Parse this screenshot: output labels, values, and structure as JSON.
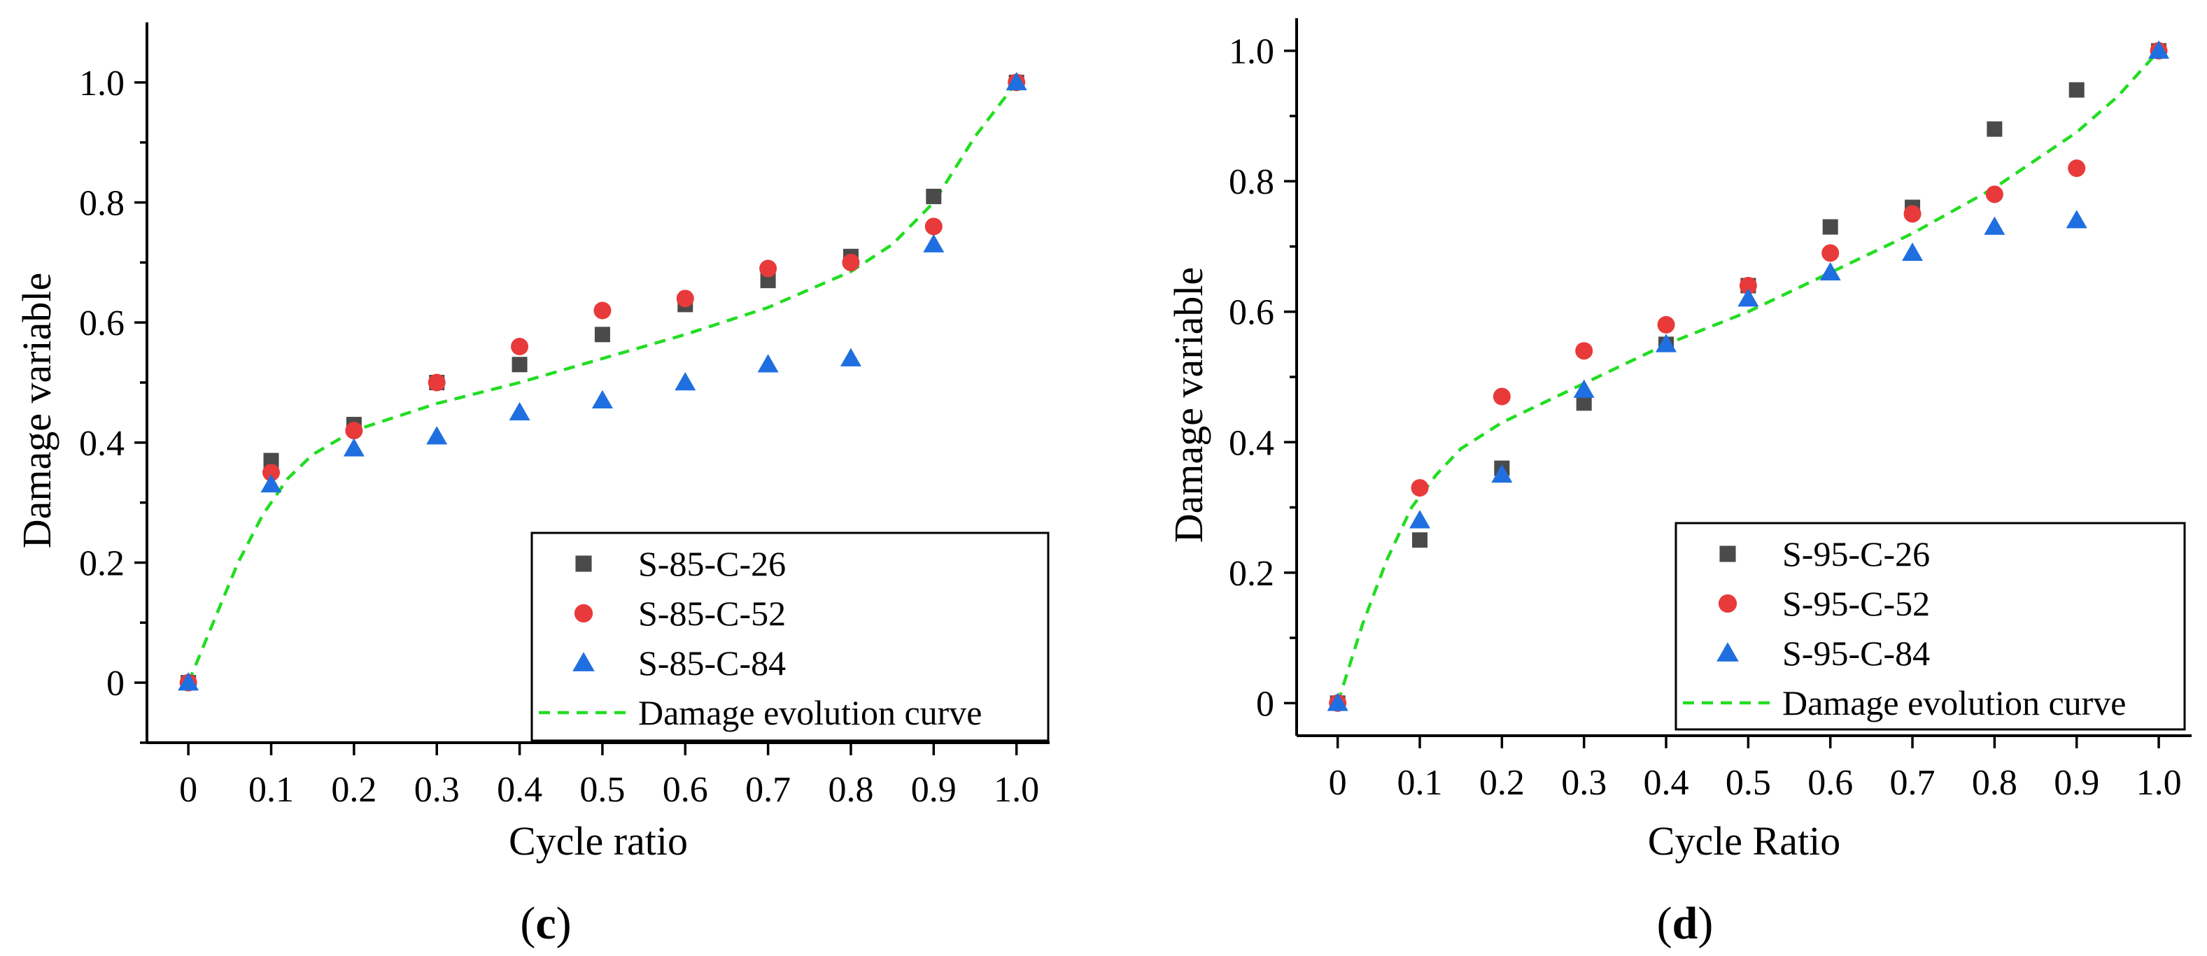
{
  "colors": {
    "s26": "#4a4a4a",
    "s52": "#e83a3a",
    "s84": "#1f6fe0",
    "curve": "#22dd22"
  },
  "chart_data": [
    {
      "type": "scatter",
      "panel_label": "c",
      "xlabel": "Cycle ratio",
      "ylabel": "Damage variable",
      "xlim": [
        -0.05,
        1.04
      ],
      "ylim": [
        -0.1,
        1.1
      ],
      "x_ticks": [
        "0",
        "0.1",
        "0.2",
        "0.3",
        "0.4",
        "0.5",
        "0.6",
        "0.7",
        "0.8",
        "0.9",
        "1.0"
      ],
      "y_ticks": [
        "0",
        "0.2",
        "0.4",
        "0.6",
        "0.8",
        "1.0"
      ],
      "legend_position": "bottom-right",
      "x": [
        0,
        0.1,
        0.2,
        0.3,
        0.4,
        0.5,
        0.6,
        0.7,
        0.8,
        0.9,
        1.0
      ],
      "series": [
        {
          "name": "S-85-C-26",
          "marker": "square",
          "color_key": "s26",
          "values": [
            0,
            0.37,
            0.43,
            0.5,
            0.53,
            0.58,
            0.63,
            0.67,
            0.71,
            0.81,
            1.0
          ]
        },
        {
          "name": "S-85-C-52",
          "marker": "circle",
          "color_key": "s52",
          "values": [
            0,
            0.35,
            0.42,
            0.5,
            0.56,
            0.62,
            0.64,
            0.69,
            0.7,
            0.76,
            1.0
          ]
        },
        {
          "name": "S-85-C-84",
          "marker": "triangle",
          "color_key": "s84",
          "values": [
            0,
            0.33,
            0.39,
            0.41,
            0.45,
            0.47,
            0.5,
            0.53,
            0.54,
            0.73,
            1.0
          ]
        }
      ],
      "curve": {
        "name": "Damage evolution curve",
        "x": [
          0,
          0.03,
          0.06,
          0.09,
          0.12,
          0.15,
          0.2,
          0.3,
          0.4,
          0.5,
          0.6,
          0.7,
          0.8,
          0.85,
          0.9,
          0.95,
          1.0
        ],
        "y": [
          0,
          0.1,
          0.2,
          0.28,
          0.34,
          0.38,
          0.42,
          0.465,
          0.5,
          0.54,
          0.58,
          0.625,
          0.685,
          0.73,
          0.8,
          0.91,
          1.0
        ]
      }
    },
    {
      "type": "scatter",
      "panel_label": "d",
      "xlabel": "Cycle Ratio",
      "ylabel": "Damage variable",
      "xlim": [
        -0.05,
        1.04
      ],
      "ylim": [
        -0.05,
        1.05
      ],
      "x_ticks": [
        "0",
        "0.1",
        "0.2",
        "0.3",
        "0.4",
        "0.5",
        "0.6",
        "0.7",
        "0.8",
        "0.9",
        "1.0"
      ],
      "y_ticks": [
        "0",
        "0.2",
        "0.4",
        "0.6",
        "0.8",
        "1.0"
      ],
      "legend_position": "bottom-right",
      "x": [
        0,
        0.1,
        0.2,
        0.3,
        0.4,
        0.5,
        0.6,
        0.7,
        0.8,
        0.9,
        1.0
      ],
      "series": [
        {
          "name": "S-95-C-26",
          "marker": "square",
          "color_key": "s26",
          "values": [
            0,
            0.25,
            0.36,
            0.46,
            0.55,
            0.64,
            0.73,
            0.76,
            0.88,
            0.94,
            1.0
          ]
        },
        {
          "name": "S-95-C-52",
          "marker": "circle",
          "color_key": "s52",
          "values": [
            0,
            0.33,
            0.47,
            0.54,
            0.58,
            0.64,
            0.69,
            0.75,
            0.78,
            0.82,
            1.0
          ]
        },
        {
          "name": "S-95-C-84",
          "marker": "triangle",
          "color_key": "s84",
          "values": [
            0,
            0.28,
            0.35,
            0.48,
            0.55,
            0.62,
            0.66,
            0.69,
            0.73,
            0.74,
            1.0
          ]
        }
      ],
      "curve": {
        "name": "Damage evolution curve",
        "x": [
          0,
          0.03,
          0.06,
          0.09,
          0.12,
          0.15,
          0.2,
          0.3,
          0.4,
          0.5,
          0.6,
          0.7,
          0.8,
          0.9,
          0.95,
          1.0
        ],
        "y": [
          0,
          0.12,
          0.22,
          0.3,
          0.35,
          0.39,
          0.43,
          0.49,
          0.55,
          0.6,
          0.66,
          0.72,
          0.79,
          0.875,
          0.93,
          1.0
        ]
      }
    }
  ]
}
